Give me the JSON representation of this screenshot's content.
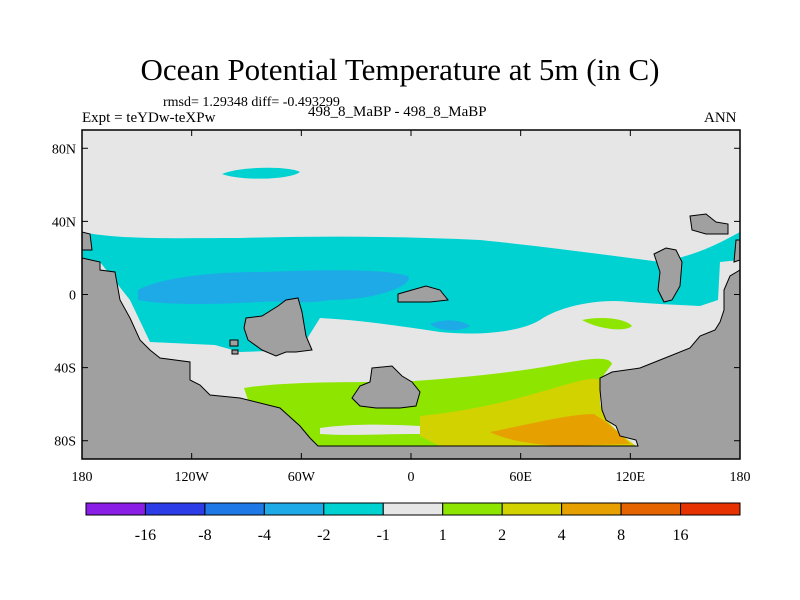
{
  "chart_data": {
    "type": "heatmap",
    "title": "Ocean Potential Temperature at 5m (in C)",
    "stats": "rmsd= 1.29348 diff= -0.493299",
    "left_label": "Expt = teYDw-teXPw",
    "center_label": "498_8_MaBP - 498_8_MaBP",
    "right_label": "ANN",
    "x_ticks": [
      "180",
      "120W",
      "60W",
      "0",
      "60E",
      "120E",
      "180"
    ],
    "y_ticks": [
      "80N",
      "40N",
      "0",
      "40S",
      "80S"
    ],
    "xlim": [
      -180,
      180
    ],
    "ylim": [
      -90,
      90
    ],
    "colorbar": {
      "levels": [
        "-16",
        "-8",
        "-4",
        "-2",
        "-1",
        "1",
        "2",
        "4",
        "8",
        "16"
      ],
      "colors": [
        "#8a1ee6",
        "#2c3ce6",
        "#1e78e6",
        "#1eaae6",
        "#00d2d2",
        "#e6e6e6",
        "#8ee600",
        "#d2d200",
        "#e6a000",
        "#e66400",
        "#e63200"
      ]
    },
    "land_color": "#a0a0a0",
    "regions": [
      {
        "name": "mid-latitude cooling band",
        "level": "-2 to -1",
        "color": "#00d2d2"
      },
      {
        "name": "equatorial cooling",
        "level": "-4 to -2",
        "color": "#1eaae6"
      },
      {
        "name": "southern warming",
        "level": "1 to 2",
        "color": "#8ee600"
      },
      {
        "name": "southern warming core",
        "level": "2 to 4",
        "color": "#d2d200"
      },
      {
        "name": "southern warming max",
        "level": "4 to 8",
        "color": "#e6a000"
      }
    ]
  }
}
